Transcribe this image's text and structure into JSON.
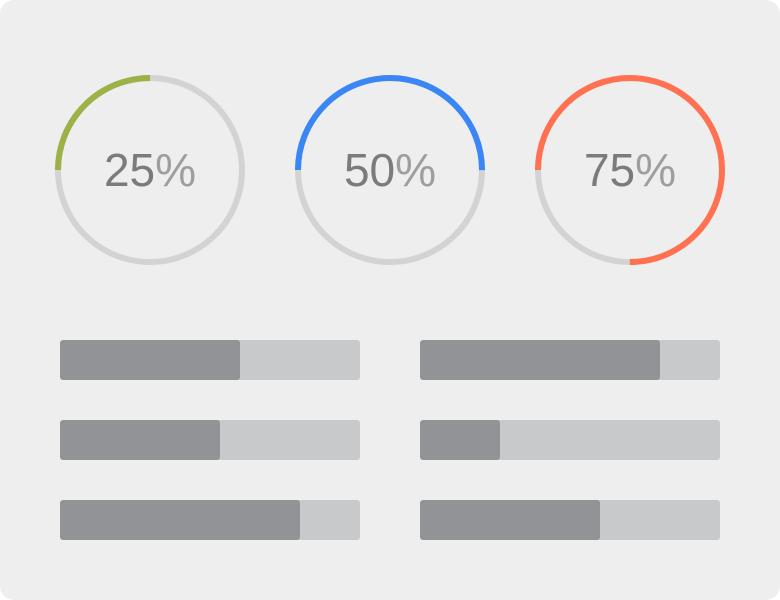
{
  "rings": [
    {
      "value": 25,
      "label": "25",
      "suffix": "%",
      "color": "#9cb146",
      "track_color": "#d3d3d3"
    },
    {
      "value": 50,
      "label": "50",
      "suffix": "%",
      "color": "#3a86f4",
      "track_color": "#d3d3d3"
    },
    {
      "value": 75,
      "label": "75",
      "suffix": "%",
      "color": "#ff7150",
      "track_color": "#d3d3d3"
    }
  ],
  "bars": [
    {
      "fraction": 0.6,
      "color": "#929397",
      "track_color": "#c8c9cb"
    },
    {
      "fraction": 0.8,
      "color": "#929397",
      "track_color": "#c8c9cb"
    },
    {
      "fraction": 0.533,
      "color": "#929397",
      "track_color": "#c8c9cb"
    },
    {
      "fraction": 0.267,
      "color": "#929397",
      "track_color": "#c8c9cb"
    },
    {
      "fraction": 0.8,
      "color": "#929397",
      "track_color": "#c8c9cb"
    },
    {
      "fraction": 0.6,
      "color": "#929397",
      "track_color": "#c8c9cb"
    }
  ]
}
